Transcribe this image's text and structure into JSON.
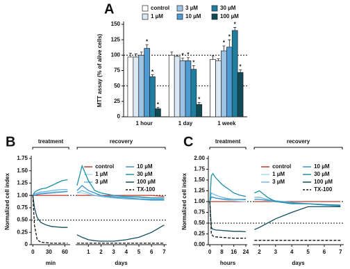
{
  "chart_data": [
    {
      "type": "bar",
      "panel": "A",
      "ylabel": "MTT assay (% of alive cells)",
      "categories": [
        "1 hour",
        "1 day",
        "1 week"
      ],
      "ylim": [
        0,
        150
      ],
      "yticks": [
        0,
        25,
        50,
        75,
        100,
        125,
        150
      ],
      "hlines": [
        50,
        100
      ],
      "significance_marker": "*",
      "series": [
        {
          "name": "control",
          "color": "#ffffff",
          "values": [
            97,
            100,
            93
          ],
          "errors": [
            6,
            5,
            6
          ],
          "significant": [
            false,
            false,
            false
          ]
        },
        {
          "name": "1 µM",
          "color": "#dbe9f5",
          "values": [
            97,
            98,
            91
          ],
          "errors": [
            5,
            2,
            3
          ],
          "significant": [
            false,
            false,
            false
          ]
        },
        {
          "name": "3 µM",
          "color": "#9cc3e4",
          "values": [
            100,
            91,
            107
          ],
          "errors": [
            5,
            4,
            8
          ],
          "significant": [
            false,
            true,
            true
          ]
        },
        {
          "name": "10 µM",
          "color": "#4d9bd3",
          "values": [
            111,
            91,
            113
          ],
          "errors": [
            6,
            5,
            12
          ],
          "significant": [
            true,
            true,
            true
          ]
        },
        {
          "name": "30 µM",
          "color": "#1f7e9e",
          "values": [
            65,
            77,
            140
          ],
          "errors": [
            3,
            6,
            5
          ],
          "significant": [
            true,
            true,
            true
          ]
        },
        {
          "name": "100 µM",
          "color": "#0f4a56",
          "values": [
            13,
            20,
            72
          ],
          "errors": [
            2,
            3,
            4
          ],
          "significant": [
            true,
            true,
            true
          ]
        }
      ]
    },
    {
      "type": "line",
      "panel": "B",
      "ylabel": "Normalized cell index",
      "ylim": [
        0,
        1.75
      ],
      "yticks": [
        0,
        0.25,
        {
          "value": 0.5,
          "label": "0.50"
        },
        0.75,
        {
          "value": 1,
          "label": "1.00"
        },
        1.25,
        {
          "value": 1.5,
          "label": "1.50"
        },
        1.75
      ],
      "hlines": [
        0.5,
        1
      ],
      "segments": [
        {
          "bracket": "treatment",
          "xlabel": "min",
          "xlim": [
            -3,
            70
          ],
          "xticks": [
            0,
            30,
            60
          ]
        },
        {
          "bracket": "recovery",
          "xlabel": "days",
          "xlim": [
            0,
            7.2
          ],
          "xticks": [
            1,
            2,
            3,
            4,
            5,
            6,
            7
          ]
        }
      ],
      "series": [
        {
          "name": "control",
          "color": "#c0392b",
          "dashed": false,
          "segments": [
            {
              "x": [
                0,
                3,
                8,
                15,
                25,
                35,
                45,
                55,
                65
              ],
              "values": [
                1,
                1,
                1,
                1,
                1,
                1,
                1,
                1,
                1
              ]
            },
            {
              "x": [
                0.1,
                0.5,
                1,
                1.5,
                2,
                3,
                4,
                5,
                6,
                7
              ],
              "values": [
                1,
                1,
                1,
                1,
                1,
                1,
                1,
                1,
                1,
                0.98
              ]
            }
          ]
        },
        {
          "name": "1 µM",
          "color": "#a8d8ef",
          "dashed": false,
          "segments": [
            {
              "x": [
                0,
                3,
                8,
                15,
                25,
                35,
                45,
                55,
                65
              ],
              "values": [
                1,
                1.02,
                1.04,
                1.05,
                1.06,
                1.07,
                1.08,
                1.08,
                1.09
              ]
            },
            {
              "x": [
                0.1,
                0.5,
                1,
                1.5,
                2,
                3,
                4,
                5,
                6,
                7
              ],
              "values": [
                1.05,
                1.05,
                1.02,
                1,
                0.99,
                0.98,
                0.97,
                0.96,
                0.95,
                0.95
              ]
            }
          ]
        },
        {
          "name": "3 µM",
          "color": "#6fb7dc",
          "dashed": false,
          "segments": [
            {
              "x": [
                0,
                3,
                8,
                15,
                25,
                35,
                45,
                55,
                65
              ],
              "values": [
                1,
                1.03,
                1.05,
                1.07,
                1.08,
                1.1,
                1.11,
                1.12,
                1.12
              ]
            },
            {
              "x": [
                0.1,
                0.5,
                1,
                1.5,
                2,
                3,
                4,
                5,
                6,
                7
              ],
              "values": [
                1.05,
                1.1,
                1.05,
                1,
                0.98,
                0.95,
                0.93,
                0.92,
                0.9,
                0.9
              ]
            }
          ]
        },
        {
          "name": "10 µM",
          "color": "#3a8fc4",
          "dashed": false,
          "segments": [
            {
              "x": [
                0,
                3,
                8,
                15,
                25,
                35,
                45,
                55,
                65
              ],
              "values": [
                1,
                1,
                1.02,
                1.03,
                1.04,
                1.05,
                1.06,
                1.07,
                1.08
              ]
            },
            {
              "x": [
                0.1,
                0.5,
                1,
                1.5,
                2,
                3,
                4,
                5,
                6,
                7
              ],
              "values": [
                1.1,
                1.2,
                1.1,
                1.05,
                1,
                0.97,
                0.95,
                0.93,
                0.92,
                0.92
              ]
            }
          ]
        },
        {
          "name": "30 µM",
          "color": "#1b8fa3",
          "dashed": false,
          "segments": [
            {
              "x": [
                0,
                3,
                8,
                15,
                25,
                35,
                45,
                55,
                65
              ],
              "values": [
                1,
                1.06,
                1.1,
                1.13,
                1.15,
                1.2,
                1.25,
                1.3,
                1.32
              ]
            },
            {
              "x": [
                0.1,
                0.5,
                1,
                1.5,
                2,
                3,
                4,
                5,
                6,
                7
              ],
              "values": [
                1.2,
                1.6,
                1.3,
                1.1,
                1.05,
                1,
                0.98,
                0.97,
                0.95,
                0.95
              ]
            }
          ]
        },
        {
          "name": "100 µM",
          "color": "#0e4d5a",
          "dashed": false,
          "segments": [
            {
              "x": [
                0,
                3,
                8,
                15,
                25,
                35,
                45,
                55,
                65
              ],
              "values": [
                1,
                0.75,
                0.55,
                0.45,
                0.4,
                0.37,
                0.36,
                0.35,
                0.35
              ]
            },
            {
              "x": [
                0.1,
                0.5,
                1,
                1.5,
                2,
                3,
                4,
                5,
                6,
                7
              ],
              "values": [
                0.2,
                0.15,
                0.1,
                0.08,
                0.07,
                0.07,
                0.1,
                0.15,
                0.25,
                0.4
              ]
            }
          ]
        },
        {
          "name": "TX-100",
          "color": "#111111",
          "dashed": true,
          "segments": [
            {
              "x": [
                0,
                3,
                8,
                15,
                25,
                35,
                45,
                55,
                65
              ],
              "values": [
                1,
                0.4,
                0.1,
                0.05,
                0.04,
                0.03,
                0.03,
                0.03,
                0.03
              ]
            },
            {
              "x": [
                0.1,
                0.5,
                1,
                1.5,
                2,
                3,
                4,
                5,
                6,
                7
              ],
              "values": [
                0.03,
                0.03,
                0.03,
                0.03,
                0.03,
                0.03,
                0.03,
                0.03,
                0.03,
                0.03
              ]
            }
          ]
        }
      ]
    },
    {
      "type": "line",
      "panel": "C",
      "ylabel": "Normalized cell index",
      "ylim": [
        0,
        2
      ],
      "yticks": [
        {
          "value": 0,
          "label": "0.00"
        },
        0.25,
        {
          "value": 0.5,
          "label": "0.50"
        },
        0.75,
        {
          "value": 1,
          "label": "1.00"
        },
        1.25,
        {
          "value": 1.5,
          "label": "1.50"
        },
        1.75,
        {
          "value": 2,
          "label": "2.00"
        }
      ],
      "hlines": [
        0.5,
        1
      ],
      "segments": [
        {
          "bracket": "treatment",
          "xlabel": "hours",
          "xlim": [
            -1,
            25
          ],
          "xticks": [
            0,
            8,
            16,
            24
          ]
        },
        {
          "bracket": "recovery",
          "xlabel": "days",
          "xlim": [
            1.6,
            7.2
          ],
          "xticks": [
            2,
            3,
            4,
            5,
            6,
            7
          ]
        }
      ],
      "series": [
        {
          "name": "control",
          "color": "#c0392b",
          "dashed": false,
          "segments": [
            {
              "x": [
                0,
                1,
                2,
                4,
                8,
                12,
                16,
                20,
                24
              ],
              "values": [
                1,
                1,
                1,
                1,
                1,
                1,
                1,
                1,
                1
              ]
            },
            {
              "x": [
                1.7,
                2,
                2.5,
                3,
                4,
                5,
                6,
                7
              ],
              "values": [
                1,
                1,
                1,
                1,
                1,
                1,
                1,
                1
              ]
            }
          ]
        },
        {
          "name": "1 µM",
          "color": "#a8d8ef",
          "dashed": false,
          "segments": [
            {
              "x": [
                0,
                1,
                2,
                4,
                8,
                12,
                16,
                20,
                24
              ],
              "values": [
                1,
                1.12,
                1.1,
                1.08,
                1.05,
                1.03,
                1.02,
                1.01,
                1
              ]
            },
            {
              "x": [
                1.7,
                2,
                2.5,
                3,
                4,
                5,
                6,
                7
              ],
              "values": [
                1.05,
                1.05,
                1.02,
                1,
                0.98,
                0.95,
                0.93,
                0.9
              ]
            }
          ]
        },
        {
          "name": "3 µM",
          "color": "#6fb7dc",
          "dashed": false,
          "segments": [
            {
              "x": [
                0,
                1,
                2,
                4,
                8,
                12,
                16,
                20,
                24
              ],
              "values": [
                1,
                1.2,
                1.18,
                1.15,
                1.1,
                1.07,
                1.05,
                1.05,
                1.04
              ]
            },
            {
              "x": [
                1.7,
                2,
                2.5,
                3,
                4,
                5,
                6,
                7
              ],
              "values": [
                1.1,
                1.1,
                1.05,
                1.02,
                0.98,
                0.95,
                0.92,
                0.9
              ]
            }
          ]
        },
        {
          "name": "10 µM",
          "color": "#3a8fc4",
          "dashed": false,
          "segments": [
            {
              "x": [
                0,
                1,
                2,
                4,
                8,
                12,
                16,
                20,
                24
              ],
              "values": [
                1,
                1.1,
                1.1,
                1.08,
                1.06,
                1.05,
                1.05,
                1.05,
                1.05
              ]
            },
            {
              "x": [
                1.7,
                2,
                2.5,
                3,
                4,
                5,
                6,
                7
              ],
              "values": [
                1.05,
                1.05,
                1.03,
                1,
                0.97,
                0.95,
                0.92,
                0.9
              ]
            }
          ]
        },
        {
          "name": "30 µM",
          "color": "#1b8fa3",
          "dashed": false,
          "segments": [
            {
              "x": [
                0,
                1,
                2,
                4,
                8,
                12,
                16,
                20,
                24
              ],
              "values": [
                1,
                1.6,
                1.65,
                1.55,
                1.4,
                1.3,
                1.2,
                1.15,
                1.12
              ]
            },
            {
              "x": [
                1.7,
                2,
                2.5,
                3,
                4,
                5,
                6,
                7
              ],
              "values": [
                1.2,
                1.25,
                1.1,
                1,
                0.95,
                0.95,
                0.93,
                0.92
              ]
            }
          ]
        },
        {
          "name": "100 µM",
          "color": "#0e4d5a",
          "dashed": false,
          "segments": [
            {
              "x": [
                0,
                1,
                2,
                4,
                8,
                12,
                16,
                20,
                24
              ],
              "values": [
                1,
                0.4,
                0.36,
                0.34,
                0.33,
                0.32,
                0.31,
                0.31,
                0.3
              ]
            },
            {
              "x": [
                1.7,
                2,
                2.5,
                3,
                4,
                5,
                6,
                7
              ],
              "values": [
                0.35,
                0.4,
                0.5,
                0.6,
                0.75,
                0.88,
                0.88,
                0.88
              ]
            }
          ]
        },
        {
          "name": "TX-100",
          "color": "#111111",
          "dashed": true,
          "segments": [
            {
              "x": [
                0,
                1,
                2,
                4,
                8,
                12,
                16,
                20,
                24
              ],
              "values": [
                1,
                0.25,
                0.2,
                0.18,
                0.17,
                0.16,
                0.15,
                0.15,
                0.15
              ]
            },
            {
              "x": [
                1.7,
                2,
                2.5,
                3,
                4,
                5,
                6,
                7
              ],
              "values": [
                0.1,
                0.1,
                0.1,
                0.1,
                0.1,
                0.1,
                0.1,
                0.1
              ]
            }
          ]
        }
      ]
    }
  ]
}
